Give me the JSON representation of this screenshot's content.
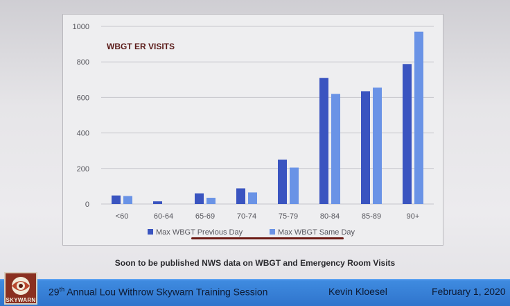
{
  "chart_data": {
    "type": "bar",
    "title": "WBGT ER VISITS",
    "categories": [
      "<60",
      "60-64",
      "65-69",
      "70-74",
      "75-79",
      "80-84",
      "85-89",
      "90+"
    ],
    "series": [
      {
        "name": "Max WBGT Previous Day",
        "values": [
          48,
          15,
          60,
          88,
          250,
          710,
          635,
          788
        ],
        "color": "#3a54c0"
      },
      {
        "name": "Max WBGT Same Day",
        "values": [
          45,
          0,
          35,
          65,
          205,
          620,
          655,
          970
        ],
        "color": "#6a93e6"
      }
    ],
    "ylim": [
      0,
      1000
    ],
    "yticks": [
      0,
      200,
      400,
      600,
      800,
      1000
    ],
    "grid": true,
    "legend": "bottom"
  },
  "caption": "Soon to be published NWS data on WBGT and Emergency Room Visits",
  "footer": {
    "logo_text": "SKYWARN",
    "ordinal_number": "29",
    "ordinal_suffix": "th",
    "session_title": " Annual Lou Withrow Skywarn Training Session",
    "presenter": "Kevin Kloesel",
    "date": "February 1, 2020"
  }
}
